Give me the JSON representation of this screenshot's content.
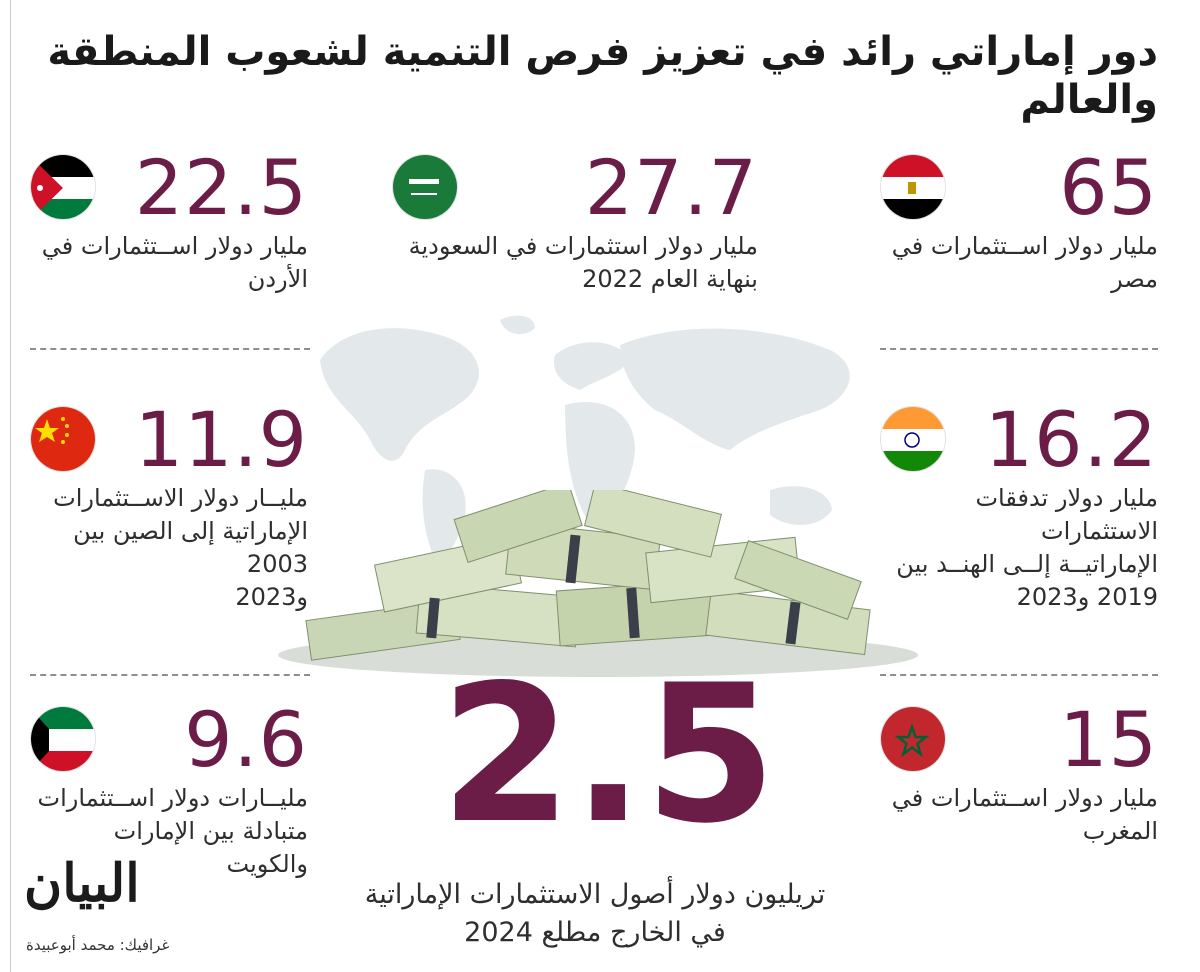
{
  "title": "دور إماراتي رائد في تعزيز فرص التنمية لشعوب المنطقة والعالم",
  "colors": {
    "accent": "#6b1d47",
    "text": "#2e2e2e"
  },
  "items": [
    {
      "value": "65",
      "line1": "مليار دولار اســتثمارات في",
      "line2": "مصر",
      "line3": "",
      "flag": "egypt-flag-icon"
    },
    {
      "value": "27.7",
      "line1": "مليار دولار استثمارات في السعودية",
      "line2": "بنهاية العام 2022",
      "line3": "",
      "flag": "saudi-flag-icon"
    },
    {
      "value": "22.5",
      "line1": "مليار دولار اســتثمارات في",
      "line2": "الأردن",
      "line3": "",
      "flag": "jordan-flag-icon"
    },
    {
      "value": "16.2",
      "line1": "مليار دولار تدفقات الاستثمارات",
      "line2": "الإماراتيــة إلــى الهنــد بين",
      "line3": "2019 و2023",
      "flag": "india-flag-icon"
    },
    {
      "value": "11.9",
      "line1": "مليــار دولار الاســتثمارات",
      "line2": "الإماراتية إلى الصين بين 2003",
      "line3": "و2023",
      "flag": "china-flag-icon"
    },
    {
      "value": "15",
      "line1": "مليار دولار اســتثمارات في",
      "line2": "المغرب",
      "line3": "",
      "flag": "morocco-flag-icon"
    },
    {
      "value": "9.6",
      "line1": "مليــارات دولار اســتثمارات",
      "line2": "متبادلة بين الإمارات والكويت",
      "line3": "",
      "flag": "kuwait-flag-icon"
    }
  ],
  "highlight": {
    "value": "2.5",
    "line1": "تريليون دولار أصول الاستثمارات الإماراتية",
    "line2": "في الخارج مطلع 2024"
  },
  "logo": "البيان",
  "credit": "غرافيك: محمد أبوعبيدة"
}
